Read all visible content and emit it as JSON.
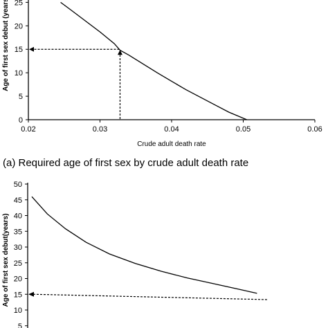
{
  "chart_data": [
    {
      "type": "line",
      "caption": "(a) Required age of first sex by crude adult death rate",
      "xlabel": "Crude adult death rate",
      "ylabel": "Age of first sex debut (years)",
      "xlim": [
        0.02,
        0.06
      ],
      "ylim": [
        0,
        25
      ],
      "xticks": [
        "0.02",
        "0.03",
        "0.04",
        "0.05",
        "0.06"
      ],
      "yticks": [
        "0",
        "5",
        "10",
        "15",
        "20",
        "25"
      ],
      "grid": false,
      "series": [
        {
          "x": [
            0.0245,
            0.026,
            0.028,
            0.03,
            0.032,
            0.0328,
            0.034,
            0.036,
            0.038,
            0.04,
            0.042,
            0.044,
            0.046,
            0.048,
            0.0505
          ],
          "y": [
            25,
            23.3,
            21.0,
            18.7,
            16.2,
            14.8,
            13.8,
            11.9,
            10.0,
            8.2,
            6.4,
            4.8,
            3.2,
            1.6,
            0
          ]
        }
      ],
      "reference": {
        "x": 0.0328,
        "y": 15
      }
    },
    {
      "type": "line",
      "xlabel": "",
      "ylabel": "Age of first sex debut(years)",
      "xlim": [
        0,
        10
      ],
      "ylim": [
        0,
        50
      ],
      "yticks": [
        "5",
        "10",
        "15",
        "20",
        "25",
        "30",
        "35",
        "40",
        "45",
        "50"
      ],
      "grid": false,
      "series": [
        {
          "x": [
            0,
            0.6,
            1.3,
            2.1,
            3.0,
            4.0,
            5.0,
            6.0,
            7.0,
            8.0,
            8.7
          ],
          "y": [
            46,
            40.5,
            35.8,
            31.5,
            27.8,
            24.8,
            22.3,
            20.2,
            18.4,
            16.6,
            15.3
          ]
        }
      ],
      "reference_line": {
        "x": [
          0,
          9.1
        ],
        "y": [
          15,
          13.3
        ]
      }
    }
  ]
}
